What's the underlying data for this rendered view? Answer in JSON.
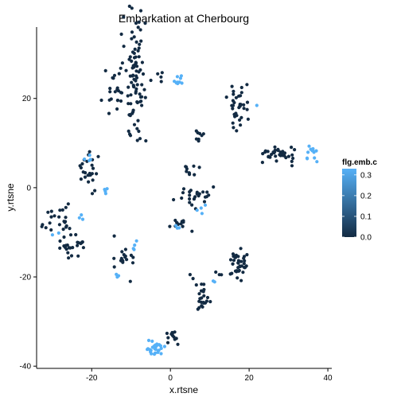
{
  "chart_data": {
    "type": "scatter",
    "title": "Embarkation at Cherbourg",
    "xlabel": "x.rtsne",
    "ylabel": "y.rtsne",
    "xlim": [
      -34,
      41
    ],
    "ylim": [
      -40.5,
      36
    ],
    "x_ticks": [
      -20,
      0,
      20,
      40
    ],
    "x_tick_labels": [
      "-20",
      "0",
      "20",
      "40"
    ],
    "y_ticks": [
      -40,
      -20,
      0,
      20
    ],
    "y_tick_labels": [
      "-40",
      "-20",
      "0",
      "20"
    ],
    "grid": false,
    "legend": {
      "title": "flg.emb.c",
      "placement": "right",
      "range": [
        0,
        0.33
      ],
      "ticks": [
        0.0,
        0.1,
        0.2,
        0.3
      ],
      "tick_labels": [
        "0.0",
        "0.1",
        "0.2",
        "0.3"
      ],
      "color_low": "#132B43",
      "color_high": "#56B1F7"
    },
    "clusters": [
      {
        "cx": -9,
        "cy": 25,
        "sx": 1.5,
        "sy": 7,
        "n": 90,
        "v": 0.0
      },
      {
        "cx": -14,
        "cy": 19,
        "sx": 1.8,
        "sy": 3,
        "n": 20,
        "v": 0.0
      },
      {
        "cx": -13,
        "cy": 27,
        "sx": 0.6,
        "sy": 0.6,
        "n": 3,
        "v": 0.0
      },
      {
        "cx": -3,
        "cy": 25,
        "sx": 0.4,
        "sy": 0.6,
        "n": 4,
        "v": 0.0
      },
      {
        "cx": 2.5,
        "cy": 24.2,
        "sx": 0.9,
        "sy": 0.8,
        "n": 10,
        "v": 0.33
      },
      {
        "cx": 17,
        "cy": 19,
        "sx": 1.2,
        "sy": 2.2,
        "n": 35,
        "v": 0.0
      },
      {
        "cx": 22,
        "cy": 18.5,
        "sx": 0.1,
        "sy": 0.1,
        "n": 1,
        "v": 0.33
      },
      {
        "cx": 27.5,
        "cy": 7.5,
        "sx": 2.3,
        "sy": 1,
        "n": 35,
        "v": 0.0
      },
      {
        "cx": 36,
        "cy": 8,
        "sx": 1.2,
        "sy": 0.9,
        "n": 12,
        "v": 0.33
      },
      {
        "cx": 7.5,
        "cy": 11.5,
        "sx": 0.8,
        "sy": 0.7,
        "n": 8,
        "v": 0.0
      },
      {
        "cx": 5,
        "cy": 4,
        "sx": 1,
        "sy": 1,
        "n": 10,
        "v": 0.0
      },
      {
        "cx": 6,
        "cy": -2,
        "sx": 2,
        "sy": 1.5,
        "n": 25,
        "v": 0.0
      },
      {
        "cx": 8,
        "cy": -4.5,
        "sx": 0.6,
        "sy": 0.6,
        "n": 4,
        "v": 0.33
      },
      {
        "cx": 3,
        "cy": -8.5,
        "sx": 1.5,
        "sy": 0.8,
        "n": 12,
        "v": 0.0
      },
      {
        "cx": 1,
        "cy": -8.5,
        "sx": 0.7,
        "sy": 0.4,
        "n": 3,
        "v": 0.33
      },
      {
        "cx": -20.5,
        "cy": 4,
        "sx": 1.2,
        "sy": 2.5,
        "n": 25,
        "v": 0.0
      },
      {
        "cx": -21,
        "cy": 6.5,
        "sx": 0.6,
        "sy": 0.4,
        "n": 4,
        "v": 0.33
      },
      {
        "cx": -17,
        "cy": -0.5,
        "sx": 0.5,
        "sy": 0.7,
        "n": 4,
        "v": 0.33
      },
      {
        "cx": -27.5,
        "cy": -7,
        "sx": 1.5,
        "sy": 1.5,
        "n": 18,
        "v": 0.0
      },
      {
        "cx": -31,
        "cy": -9,
        "sx": 0.8,
        "sy": 0.5,
        "n": 5,
        "v": 0.0
      },
      {
        "cx": -25,
        "cy": -13,
        "sx": 1.8,
        "sy": 1.5,
        "n": 25,
        "v": 0.0
      },
      {
        "cx": -29,
        "cy": -11,
        "sx": 0.4,
        "sy": 0.4,
        "n": 2,
        "v": 0.33
      },
      {
        "cx": -23,
        "cy": -6,
        "sx": 0.5,
        "sy": 0.5,
        "n": 3,
        "v": 0.33
      },
      {
        "cx": -12,
        "cy": -16,
        "sx": 1.5,
        "sy": 2,
        "n": 18,
        "v": 0.0
      },
      {
        "cx": -9,
        "cy": -13,
        "sx": 0.5,
        "sy": 0.7,
        "n": 4,
        "v": 0.33
      },
      {
        "cx": -13,
        "cy": -20,
        "sx": 0.5,
        "sy": 0.3,
        "n": 3,
        "v": 0.33
      },
      {
        "cx": 17,
        "cy": -17.5,
        "sx": 1.2,
        "sy": 1.8,
        "n": 40,
        "v": 0.0
      },
      {
        "cx": 12,
        "cy": -19,
        "sx": 0.6,
        "sy": 0.6,
        "n": 3,
        "v": 0.0
      },
      {
        "cx": 8,
        "cy": -25,
        "sx": 1,
        "sy": 1.5,
        "n": 22,
        "v": 0.0
      },
      {
        "cx": 11,
        "cy": -21,
        "sx": 0.3,
        "sy": 0.3,
        "n": 2,
        "v": 0.33
      },
      {
        "cx": 5,
        "cy": -20,
        "sx": 0.3,
        "sy": 0.3,
        "n": 2,
        "v": 0.0
      },
      {
        "cx": -4,
        "cy": -36,
        "sx": 1.2,
        "sy": 0.8,
        "n": 28,
        "v": 0.33
      },
      {
        "cx": 0.5,
        "cy": -33.5,
        "sx": 0.8,
        "sy": 1,
        "n": 12,
        "v": 0.0
      }
    ]
  }
}
